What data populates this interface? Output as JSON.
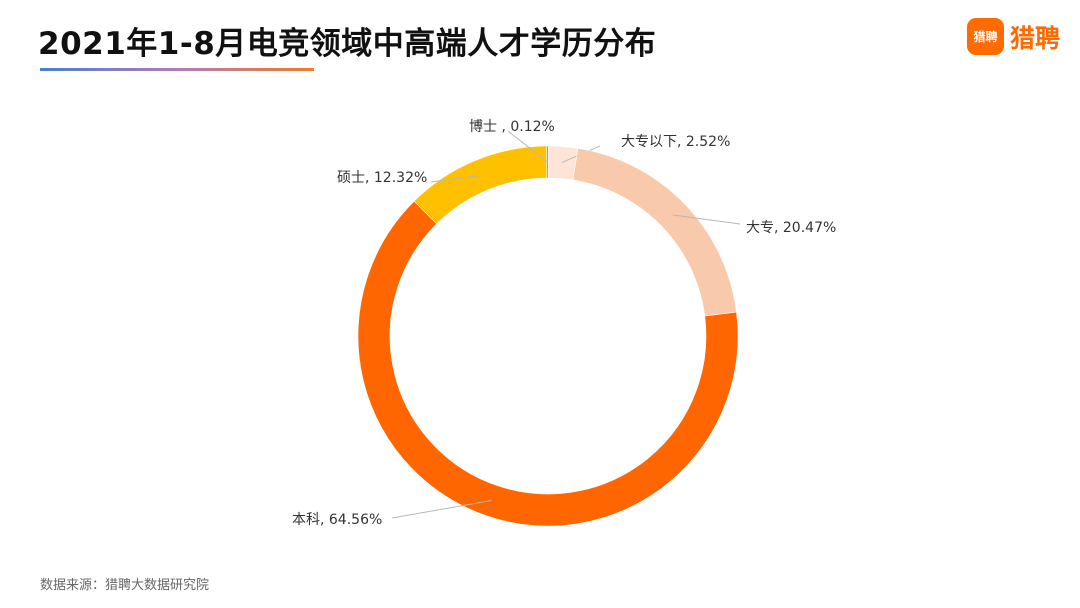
{
  "header": {
    "title": "2021年1-8月电竞领域中高端人才学历分布"
  },
  "logo": {
    "badge_text": "猎聘",
    "text": "猎聘",
    "color": "#ff6b00"
  },
  "chart_data": {
    "type": "pie",
    "style": "donut",
    "title": "2021年1-8月电竞领域中高端人才学历分布",
    "unit": "%",
    "slices": [
      {
        "label": "大专以下",
        "value": 2.52,
        "display": "大专以下, 2.52%",
        "color": "#fde4d6"
      },
      {
        "label": "大专",
        "value": 20.47,
        "display": "大专, 20.47%",
        "color": "#f8c9aa"
      },
      {
        "label": "本科",
        "value": 64.56,
        "display": "本科, 64.56%",
        "color": "#ff6600"
      },
      {
        "label": "硕士",
        "value": 12.32,
        "display": "硕士, 12.32%",
        "color": "#ffc000"
      },
      {
        "label": "博士",
        "value": 0.12,
        "display": "博士 , 0.12%",
        "color": "#c55a11"
      }
    ]
  },
  "footer": {
    "source": "数据来源：猎聘大数据研究院"
  }
}
